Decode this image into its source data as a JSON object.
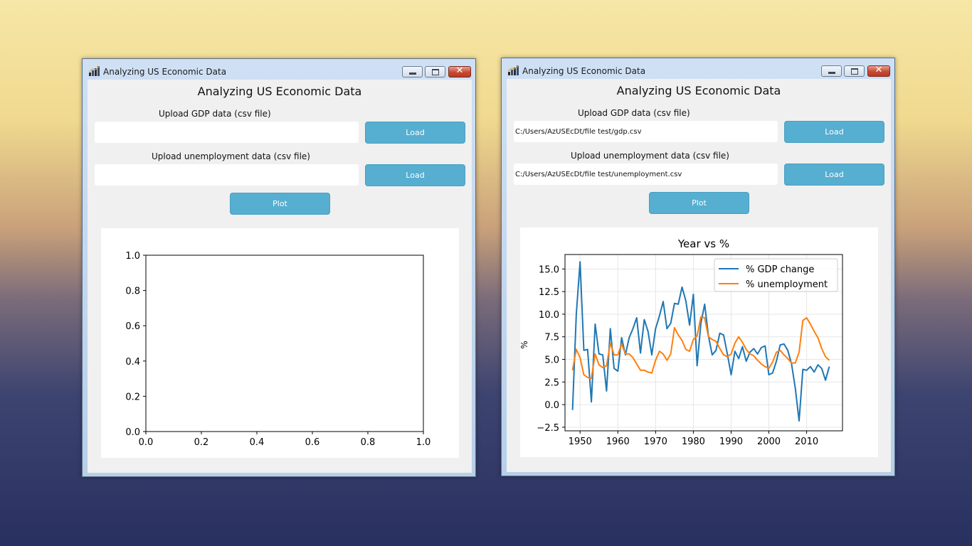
{
  "windows": [
    {
      "title": "Analyzing US Economic Data",
      "heading": "Analyzing US Economic Data",
      "gdp_label": "Upload GDP data (csv file)",
      "gdp_path": "",
      "gdp_load": "Load",
      "unemp_label": "Upload unemployment data (csv file)",
      "unemp_path": "",
      "unemp_load": "Load",
      "plot_button": "Plot",
      "empty_chart": {
        "x_ticks": [
          "0.0",
          "0.2",
          "0.4",
          "0.6",
          "0.8",
          "1.0"
        ],
        "y_ticks": [
          "0.0",
          "0.2",
          "0.4",
          "0.6",
          "0.8",
          "1.0"
        ]
      }
    },
    {
      "title": "Analyzing US Economic Data",
      "heading": "Analyzing US Economic Data",
      "gdp_label": "Upload GDP data (csv file)",
      "gdp_path": "C:/Users/AzUSEcDt/file test/gdp.csv",
      "gdp_load": "Load",
      "unemp_label": "Upload unemployment data (csv file)",
      "unemp_path": "C:/Users/AzUSEcDt/file test/unemployment.csv",
      "unemp_load": "Load",
      "plot_button": "Plot"
    }
  ],
  "chart_data": {
    "type": "line",
    "title": "Year vs %",
    "xlabel": "",
    "ylabel": "%",
    "xlim": [
      1946,
      2019.5
    ],
    "ylim": [
      -2.9,
      16.6
    ],
    "x_ticks": [
      1950,
      1960,
      1970,
      1980,
      1990,
      2000,
      2010
    ],
    "y_ticks": [
      -2.5,
      0.0,
      2.5,
      5.0,
      7.5,
      10.0,
      12.5,
      15.0
    ],
    "y_tick_labels": [
      "−2.5",
      "0.0",
      "2.5",
      "5.0",
      "7.5",
      "10.0",
      "12.5",
      "15.0"
    ],
    "grid": true,
    "legend_position": "top-right",
    "x": [
      1948,
      1949,
      1950,
      1951,
      1952,
      1953,
      1954,
      1955,
      1956,
      1957,
      1958,
      1959,
      1960,
      1961,
      1962,
      1963,
      1964,
      1965,
      1966,
      1967,
      1968,
      1969,
      1970,
      1971,
      1972,
      1973,
      1974,
      1975,
      1976,
      1977,
      1978,
      1979,
      1980,
      1981,
      1982,
      1983,
      1984,
      1985,
      1986,
      1987,
      1988,
      1989,
      1990,
      1991,
      1992,
      1993,
      1994,
      1995,
      1996,
      1997,
      1998,
      1999,
      2000,
      2001,
      2002,
      2003,
      2004,
      2005,
      2006,
      2007,
      2008,
      2009,
      2010,
      2011,
      2012,
      2013,
      2014,
      2015,
      2016
    ],
    "series": [
      {
        "name": "% GDP change",
        "color": "#1f77b4",
        "values": [
          -0.6,
          10.0,
          15.8,
          6.0,
          6.1,
          0.3,
          8.9,
          5.6,
          5.5,
          1.5,
          8.4,
          4.0,
          3.7,
          7.4,
          5.5,
          7.4,
          8.4,
          9.6,
          5.7,
          9.4,
          8.1,
          5.5,
          8.4,
          9.8,
          11.4,
          8.4,
          9.0,
          11.2,
          11.1,
          13.0,
          11.5,
          8.8,
          12.2,
          4.3,
          9.0,
          11.1,
          7.6,
          5.5,
          6.0,
          7.9,
          7.7,
          5.6,
          3.3,
          5.9,
          5.1,
          6.4,
          4.8,
          5.8,
          6.2,
          5.6,
          6.3,
          6.5,
          3.3,
          3.5,
          4.8,
          6.6,
          6.7,
          6.0,
          4.5,
          1.8,
          -1.8,
          3.9,
          3.8,
          4.2,
          3.6,
          4.4,
          4.0,
          2.7,
          4.2
        ]
      },
      {
        "name": "% unemployment",
        "color": "#ff7f0e",
        "values": [
          3.8,
          6.1,
          5.2,
          3.3,
          3.0,
          2.9,
          5.6,
          4.4,
          4.1,
          4.3,
          6.8,
          5.5,
          5.5,
          6.7,
          5.6,
          5.6,
          5.2,
          4.5,
          3.8,
          3.8,
          3.6,
          3.5,
          4.9,
          5.9,
          5.6,
          4.9,
          5.6,
          8.5,
          7.7,
          7.1,
          6.1,
          5.9,
          7.2,
          7.6,
          9.7,
          9.6,
          7.5,
          7.2,
          7.0,
          6.2,
          5.5,
          5.3,
          5.6,
          6.8,
          7.5,
          6.9,
          6.1,
          5.6,
          5.4,
          4.9,
          4.5,
          4.2,
          4.0,
          4.7,
          5.8,
          6.0,
          5.5,
          5.1,
          4.6,
          4.6,
          5.8,
          9.3,
          9.6,
          8.9,
          8.1,
          7.4,
          6.2,
          5.3,
          4.9
        ]
      }
    ]
  }
}
